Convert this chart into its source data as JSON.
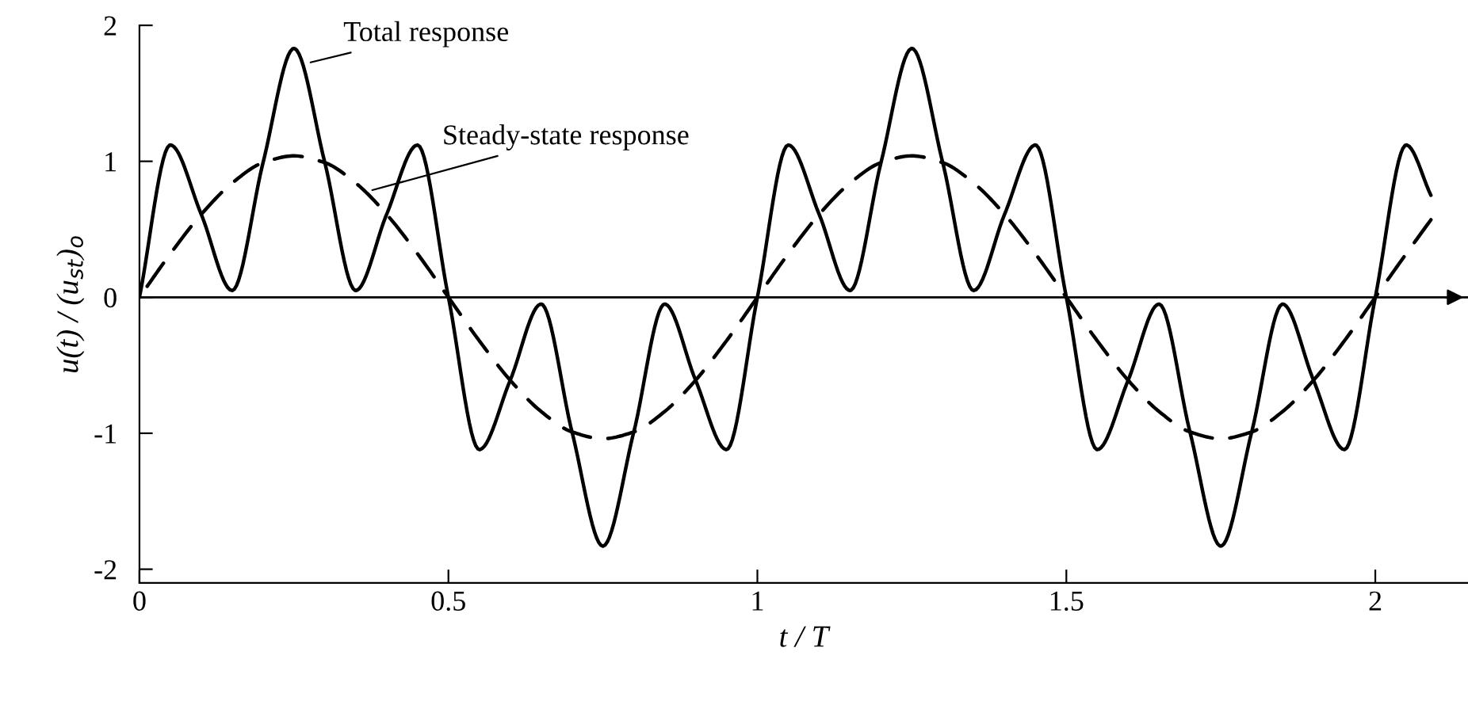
{
  "chart_data": {
    "type": "line",
    "xlabel": "t / T",
    "ylabel": "u(t) / (u$_{st}$)$_{o}$",
    "xlim": [
      0,
      2.15
    ],
    "ylim": [
      -2.1,
      2
    ],
    "xticks": [
      0,
      0.5,
      1,
      1.5,
      2
    ],
    "yticks": [
      {
        "value": -2,
        "label": "-2"
      },
      {
        "value": -1,
        "label": "-1"
      },
      0,
      1,
      2
    ],
    "grid": false,
    "legend": false,
    "ref_lines": [
      {
        "axis": "y",
        "value": 0,
        "color": "#000000"
      }
    ],
    "series": [
      {
        "type": "line",
        "color": "#000000",
        "line_style": "solid",
        "x": [
          0,
          0.05,
          0.1,
          0.15,
          0.2,
          0.25,
          0.3,
          0.35,
          0.4,
          0.45,
          0.5,
          0.55,
          0.6,
          0.65,
          0.7,
          0.75,
          0.8,
          0.85,
          0.9,
          0.95,
          1.0,
          1.05,
          1.1,
          1.15,
          1.2,
          1.25,
          1.3,
          1.35,
          1.4,
          1.45,
          1.5,
          1.55,
          1.6,
          1.65,
          1.7,
          1.75,
          1.8,
          1.85,
          1.9,
          1.95,
          2.0,
          2.05,
          2.09
        ],
        "values": [
          0,
          1.12,
          0.61,
          0.05,
          0.99,
          1.83,
          0.99,
          0.05,
          0.61,
          1.12,
          0,
          -1.12,
          -0.61,
          -0.05,
          -0.99,
          -1.83,
          -0.99,
          -0.05,
          -0.61,
          -1.12,
          0,
          1.12,
          0.61,
          0.05,
          0.99,
          1.83,
          0.99,
          0.05,
          0.61,
          1.12,
          0,
          -1.12,
          -0.61,
          -0.05,
          -0.99,
          -1.83,
          -0.99,
          -0.05,
          -0.61,
          -1.12,
          0,
          1.12,
          0.75
        ]
      },
      {
        "type": "line",
        "color": "#000000",
        "line_style": "dashed",
        "x": [
          0,
          0.05,
          0.1,
          0.15,
          0.2,
          0.25,
          0.3,
          0.35,
          0.4,
          0.45,
          0.5,
          0.55,
          0.6,
          0.65,
          0.7,
          0.75,
          0.8,
          0.85,
          0.9,
          0.95,
          1.0,
          1.05,
          1.1,
          1.15,
          1.2,
          1.25,
          1.3,
          1.35,
          1.4,
          1.45,
          1.5,
          1.55,
          1.6,
          1.65,
          1.7,
          1.75,
          1.8,
          1.85,
          1.9,
          1.95,
          2.0,
          2.05,
          2.09
        ],
        "values": [
          0,
          0.32,
          0.61,
          0.84,
          0.99,
          1.04,
          0.99,
          0.84,
          0.61,
          0.32,
          0,
          -0.32,
          -0.61,
          -0.84,
          -0.99,
          -1.04,
          -0.99,
          -0.84,
          -0.61,
          -0.32,
          0,
          0.32,
          0.61,
          0.84,
          0.99,
          1.04,
          0.99,
          0.84,
          0.61,
          0.32,
          0,
          -0.32,
          -0.61,
          -0.84,
          -0.99,
          -1.04,
          -0.99,
          -0.84,
          -0.61,
          -0.32,
          0,
          0.32,
          0.57
        ]
      }
    ],
    "annotations": [
      {
        "text": "Total response",
        "x": 0.27,
        "y": 1.72
      },
      {
        "text": "Steady-state response",
        "x": 0.37,
        "y": 0.78
      }
    ]
  }
}
